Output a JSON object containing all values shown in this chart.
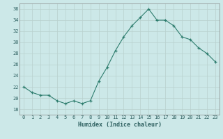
{
  "x": [
    0,
    1,
    2,
    3,
    4,
    5,
    6,
    7,
    8,
    9,
    10,
    11,
    12,
    13,
    14,
    15,
    16,
    17,
    18,
    19,
    20,
    21,
    22,
    23
  ],
  "y": [
    22,
    21,
    20.5,
    20.5,
    19.5,
    19,
    19.5,
    19,
    19.5,
    23,
    25.5,
    28.5,
    31,
    33,
    34.5,
    36,
    34,
    34,
    33,
    31,
    30.5,
    29,
    28,
    26.5
  ],
  "line_color": "#2e7d6e",
  "marker": "+",
  "marker_color": "#2e7d6e",
  "bg_color": "#cce8e8",
  "grid_color": "#b8d0ce",
  "xlabel": "Humidex (Indice chaleur)",
  "ylim": [
    17,
    37
  ],
  "xlim": [
    -0.5,
    23.5
  ],
  "yticks": [
    18,
    20,
    22,
    24,
    26,
    28,
    30,
    32,
    34,
    36
  ],
  "xticks": [
    0,
    1,
    2,
    3,
    4,
    5,
    6,
    7,
    8,
    9,
    10,
    11,
    12,
    13,
    14,
    15,
    16,
    17,
    18,
    19,
    20,
    21,
    22,
    23
  ],
  "xtick_labels": [
    "0",
    "1",
    "2",
    "3",
    "4",
    "5",
    "6",
    "7",
    "8",
    "9",
    "10",
    "11",
    "12",
    "13",
    "14",
    "15",
    "16",
    "17",
    "18",
    "19",
    "20",
    "21",
    "22",
    "23"
  ]
}
